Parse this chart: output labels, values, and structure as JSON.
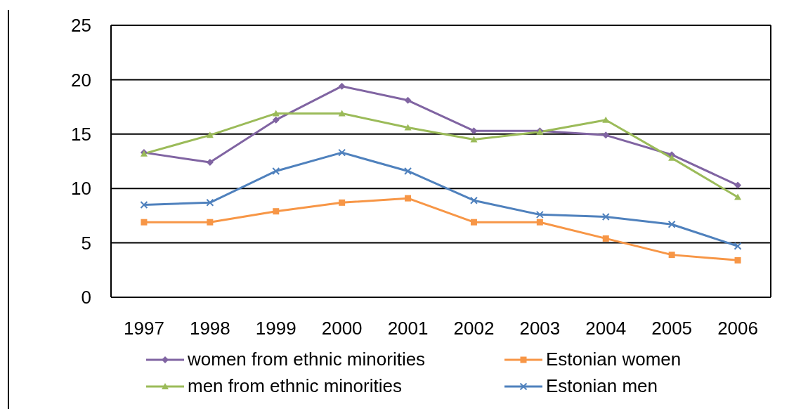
{
  "chart_data": {
    "type": "line",
    "categories": [
      "1997",
      "1998",
      "1999",
      "2000",
      "2001",
      "2002",
      "2003",
      "2004",
      "2005",
      "2006"
    ],
    "series": [
      {
        "name": "women from ethnic minorities",
        "color": "#8064a2",
        "marker": "diamond",
        "values": [
          13.3,
          12.4,
          16.3,
          19.4,
          18.1,
          15.3,
          15.3,
          14.9,
          13.1,
          10.3
        ]
      },
      {
        "name": "Estonian women",
        "color": "#f79646",
        "marker": "square",
        "values": [
          6.9,
          6.9,
          7.9,
          8.7,
          9.1,
          6.9,
          6.9,
          5.4,
          3.9,
          3.4
        ]
      },
      {
        "name": "men from ethnic minorities",
        "color": "#9bbb59",
        "marker": "triangle",
        "values": [
          13.2,
          14.9,
          16.9,
          16.9,
          15.6,
          14.5,
          15.2,
          16.3,
          12.8,
          9.2
        ]
      },
      {
        "name": "Estonian men",
        "color": "#4f81bd",
        "marker": "cross",
        "values": [
          8.5,
          8.7,
          11.6,
          13.3,
          11.6,
          8.9,
          7.6,
          7.4,
          6.7,
          4.7
        ]
      }
    ],
    "ylim": [
      0,
      25
    ],
    "yticks": [
      0,
      5,
      10,
      15,
      20,
      25
    ],
    "grid": "y",
    "legend": "bottom",
    "line_style": "solid"
  }
}
